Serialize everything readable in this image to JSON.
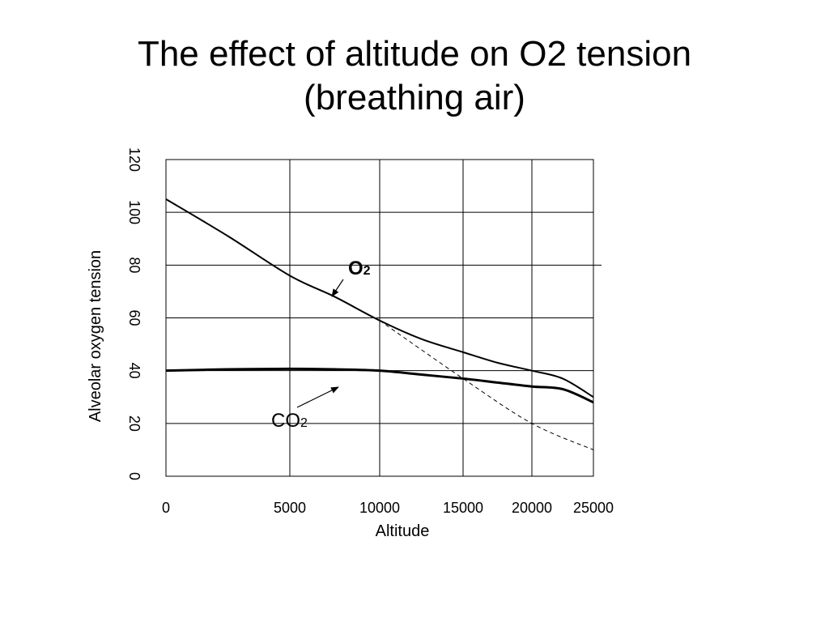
{
  "chart_data": {
    "type": "line",
    "title_line1": "The effect of altitude on O2 tension",
    "title_line2": "(breathing air)",
    "xlabel": "Altitude",
    "ylabel": "Alveolar oxygen tension",
    "x_tick_labels": [
      "0",
      "5000",
      "10000",
      "15000",
      "20000",
      "25000"
    ],
    "y_tick_labels": [
      "0",
      "20",
      "40",
      "60",
      "80",
      "100",
      "120"
    ],
    "ylim": [
      0,
      120
    ],
    "grid": true,
    "series": [
      {
        "name": "O2",
        "style": "solid-thin",
        "points": [
          [
            0,
            105
          ],
          [
            2500,
            91
          ],
          [
            5000,
            76
          ],
          [
            7500,
            68
          ],
          [
            10000,
            59
          ],
          [
            12500,
            52
          ],
          [
            15000,
            47
          ],
          [
            17500,
            43
          ],
          [
            20000,
            40
          ],
          [
            22500,
            37
          ],
          [
            25000,
            30
          ]
        ]
      },
      {
        "name": "CO2",
        "style": "solid-thick",
        "points": [
          [
            0,
            40
          ],
          [
            2500,
            40.5
          ],
          [
            5000,
            40.7
          ],
          [
            7500,
            40.5
          ],
          [
            10000,
            40
          ],
          [
            12500,
            38.5
          ],
          [
            15000,
            37
          ],
          [
            17500,
            35.5
          ],
          [
            20000,
            34
          ],
          [
            22500,
            33
          ],
          [
            25000,
            28
          ]
        ]
      },
      {
        "name": "",
        "style": "dashed",
        "points": [
          [
            10000,
            59
          ],
          [
            15000,
            37
          ],
          [
            20000,
            20
          ],
          [
            25000,
            10
          ]
        ]
      }
    ],
    "annotations": [
      {
        "text": "O",
        "sub": "2",
        "bold": true
      },
      {
        "text": "CO",
        "sub": "2",
        "bold": false
      }
    ]
  }
}
